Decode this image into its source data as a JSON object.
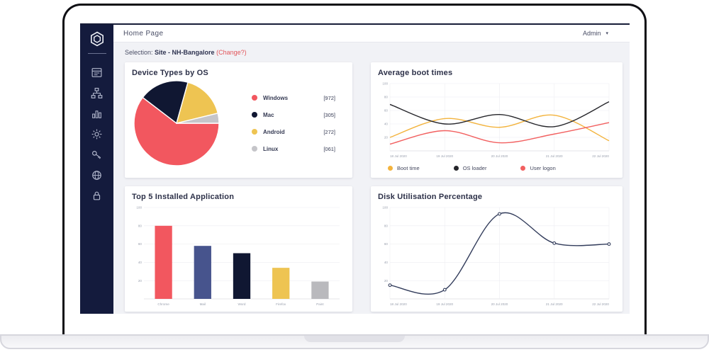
{
  "header": {
    "title": "Home Page",
    "admin_label": "Admin",
    "admin_caret": "▾"
  },
  "sidebar": {
    "logo": "hexagon-logo",
    "items": [
      {
        "icon": "dashboard-icon"
      },
      {
        "icon": "sitemap-icon"
      },
      {
        "icon": "bar-chart-icon"
      },
      {
        "icon": "settings-gear-icon"
      },
      {
        "icon": "key-icon"
      },
      {
        "icon": "globe-settings-icon"
      },
      {
        "icon": "lock-icon"
      }
    ]
  },
  "selection": {
    "prefix": "Selection:",
    "site": "Site - NH-Bangalore",
    "change_link": "(Change?)"
  },
  "colors": {
    "sidebar_bg": "#141b3d",
    "content_bg": "#f1f2f6",
    "accent_red": "#f2575f",
    "accent_navy": "#101732",
    "accent_yellow": "#eec452",
    "accent_gray": "#c5c5c9",
    "accent_slate": "#47548d",
    "line_black": "#26262b",
    "line_red": "#f26060",
    "line_yellow": "#f3b33d",
    "disk_line": "#333d5c",
    "change_link_red": "#e2555a",
    "grid_line": "#ededf2",
    "tick_text": "#9aa0ae"
  },
  "chart_data": [
    {
      "type": "pie",
      "title": "Device Types by OS",
      "labels": [
        "Windows",
        "Mac",
        "Android",
        "Linux"
      ],
      "values": [
        972,
        305,
        272,
        61
      ],
      "display_counts": [
        "[972]",
        "[305]",
        "[272]",
        "[061]"
      ],
      "colors": [
        "#f2575f",
        "#101732",
        "#eec452",
        "#c5c5c9"
      ],
      "start_angle_deg": 90,
      "legend_position": "right"
    },
    {
      "type": "line",
      "title": "Average boot times",
      "x": [
        "18 Jul 2020",
        "19 Jul 2020",
        "20 Jul 2020",
        "21 Jul 2020",
        "22 Jul 2020"
      ],
      "series": [
        {
          "name": "Boot time",
          "color": "#f3b33d",
          "values": [
            20,
            48,
            35,
            53,
            15
          ]
        },
        {
          "name": "OS loader",
          "color": "#26262b",
          "values": [
            69,
            40,
            54,
            36,
            73
          ]
        },
        {
          "name": "User logon",
          "color": "#f26060",
          "values": [
            10,
            30,
            12,
            25,
            42
          ]
        }
      ],
      "ylim": [
        0,
        100
      ],
      "yticks": [
        20,
        40,
        60,
        80,
        100
      ],
      "grid": true,
      "markers": false,
      "legend_position": "bottom"
    },
    {
      "type": "bar",
      "title": "Top 5 Installed Application",
      "categories": [
        "Chrome",
        "Mail",
        "Word",
        "Firefox",
        "Paint"
      ],
      "values": [
        80,
        58,
        50,
        34,
        19
      ],
      "bar_colors": [
        "#f2575f",
        "#47548d",
        "#101732",
        "#eec452",
        "#b9b9bd"
      ],
      "ylim": [
        0,
        100
      ],
      "yticks": [
        20,
        40,
        60,
        80,
        100
      ],
      "grid": true
    },
    {
      "type": "line",
      "title": "Disk Utilisation Percentage",
      "x": [
        "18 Jul 2020",
        "19 Jul 2020",
        "20 Jul 2020",
        "21 Jul 2020",
        "22 Jul 2020"
      ],
      "series": [
        {
          "name": "Disk utilisation",
          "color": "#333d5c",
          "values": [
            15,
            10,
            93,
            61,
            60
          ]
        }
      ],
      "ylim": [
        0,
        100
      ],
      "yticks": [
        20,
        40,
        60,
        80,
        100
      ],
      "grid": true,
      "markers": true,
      "legend_position": "none"
    }
  ]
}
